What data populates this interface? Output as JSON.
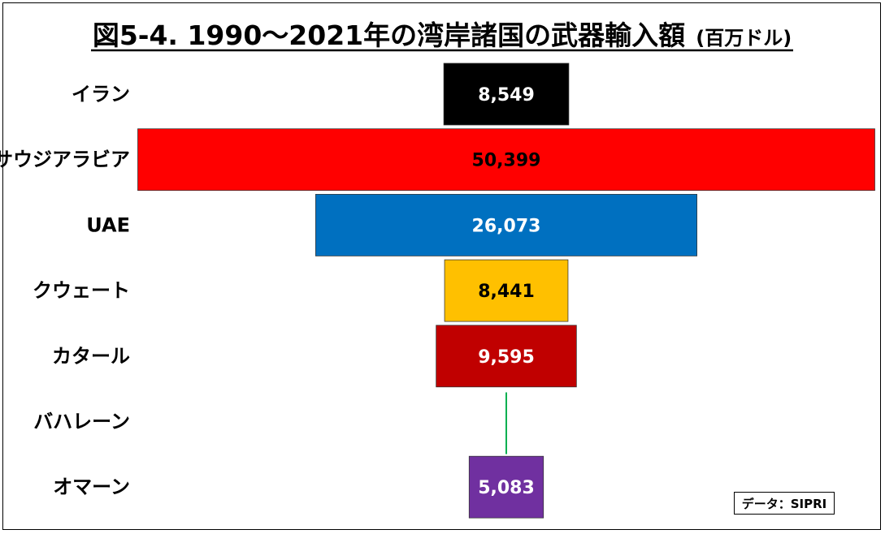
{
  "chart_data": {
    "type": "bar",
    "orientation": "horizontal-centered",
    "title": "図5-4. 1990～2021年の湾岸諸国の武器輸入額",
    "title_unit": "(百万ドル)",
    "categories": [
      "イラン",
      "サウジアラビア",
      "UAE",
      "クウェート",
      "カタール",
      "バハレーン",
      "オマーン"
    ],
    "values": [
      8549,
      50399,
      26073,
      8441,
      9595,
      null,
      5083
    ],
    "value_labels": [
      "8,549",
      "50,399",
      "26,073",
      "8,441",
      "9,595",
      "",
      "5,083"
    ],
    "colors": [
      "#000000",
      "#ff0000",
      "#0070c0",
      "#ffc000",
      "#c00000",
      "#00b050",
      "#7030a0"
    ],
    "label_colors": [
      "#ffffff",
      "#000000",
      "#ffffff",
      "#000000",
      "#ffffff",
      "#ffffff",
      "#ffffff"
    ],
    "legend": "none",
    "grid": false
  },
  "source": "データ：SIPRI"
}
